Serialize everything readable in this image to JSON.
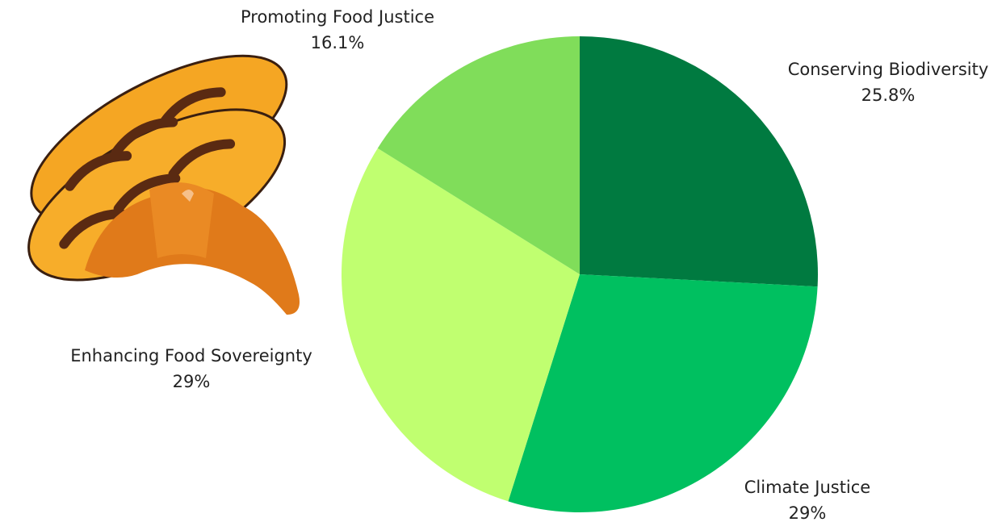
{
  "chart_data": {
    "type": "pie",
    "categories": [
      "Conserving Biodiversity",
      "Climate Justice",
      "Enhancing Food Sovereignty",
      "Promoting Food Justice"
    ],
    "values": [
      25.8,
      29,
      29,
      16.1
    ],
    "value_labels": [
      "25.8%",
      "29%",
      "29%",
      "16.1%"
    ],
    "colors": [
      "#007a40",
      "#00c060",
      "#c0ff70",
      "#80dd5a"
    ]
  }
}
